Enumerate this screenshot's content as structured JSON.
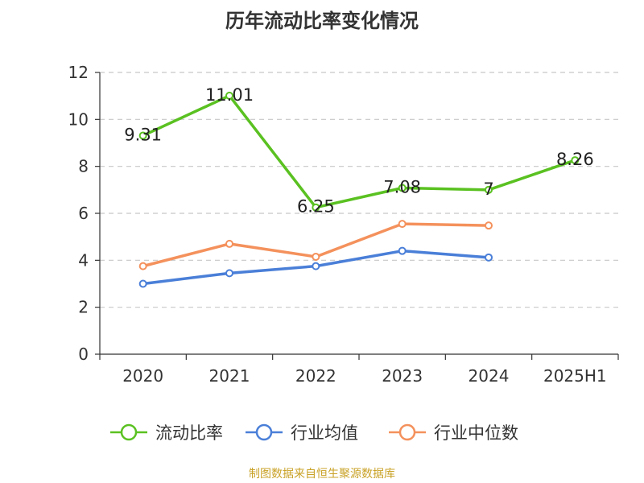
{
  "chart_data": {
    "type": "line",
    "title": "历年流动比率变化情况",
    "categories": [
      "2020",
      "2021",
      "2022",
      "2023",
      "2024",
      "2025H1"
    ],
    "ylim": [
      0,
      12
    ],
    "yticks": [
      0,
      2,
      4,
      6,
      8,
      10,
      12
    ],
    "grid": true,
    "legend_position": "bottom",
    "series": [
      {
        "name": "流动比率",
        "color": "#5ac121",
        "values": [
          9.31,
          11.01,
          6.25,
          7.08,
          7,
          8.26
        ],
        "labels": [
          "9.31",
          "11.01",
          "6.25",
          "7.08",
          "7",
          "8.26"
        ]
      },
      {
        "name": "行业均值",
        "color": "#4a7fd8",
        "values": [
          3.0,
          3.45,
          3.75,
          4.4,
          4.12,
          null
        ]
      },
      {
        "name": "行业中位数",
        "color": "#f4915c",
        "values": [
          3.75,
          4.7,
          4.15,
          5.55,
          5.48,
          null
        ]
      }
    ]
  },
  "source": "制图数据来自恒生聚源数据库"
}
